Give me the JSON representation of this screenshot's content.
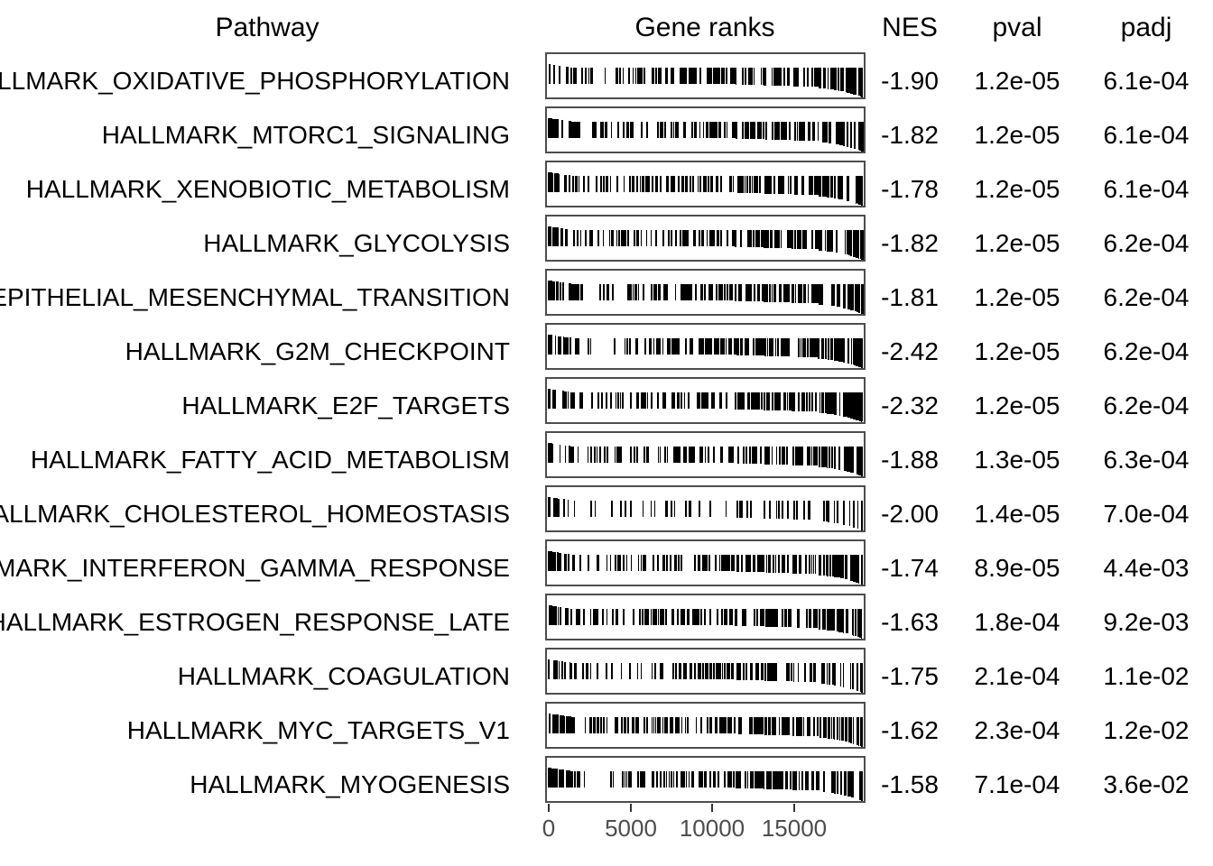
{
  "chart_data": {
    "type": "table",
    "columns": [
      "Pathway",
      "Gene ranks",
      "NES",
      "pval",
      "padj"
    ],
    "x_axis": {
      "tick_labels": [
        "0",
        "5000",
        "10000",
        "15000"
      ],
      "tick_values": [
        0,
        5000,
        10000,
        15000
      ],
      "x_range": [
        0,
        19200
      ]
    },
    "rows": [
      {
        "pathway": "HALLMARK_OXIDATIVE_PHOSPHORYLATION",
        "nes": "-1.90",
        "pval": "1.2e-05",
        "padj": "6.1e-04",
        "rank_profile": {
          "n": 170,
          "seed": 11,
          "left": 0.06,
          "mid": 0.24
        }
      },
      {
        "pathway": "HALLMARK_MTORC1_SIGNALING",
        "nes": "-1.82",
        "pval": "1.2e-05",
        "padj": "6.1e-04",
        "rank_profile": {
          "n": 185,
          "seed": 22,
          "left": 0.12,
          "mid": 0.25
        }
      },
      {
        "pathway": "HALLMARK_XENOBIOTIC_METABOLISM",
        "nes": "-1.78",
        "pval": "1.2e-05",
        "padj": "6.1e-04",
        "rank_profile": {
          "n": 185,
          "seed": 33,
          "left": 0.13,
          "mid": 0.25
        }
      },
      {
        "pathway": "HALLMARK_GLYCOLYSIS",
        "nes": "-1.82",
        "pval": "1.2e-05",
        "padj": "6.2e-04",
        "rank_profile": {
          "n": 170,
          "seed": 44,
          "left": 0.07,
          "mid": 0.26
        }
      },
      {
        "pathway": "HALLMARK_EPITHELIAL_MESENCHYMAL_TRANSITION",
        "nes": "-1.81",
        "pval": "1.2e-05",
        "padj": "6.2e-04",
        "rank_profile": {
          "n": 185,
          "seed": 55,
          "left": 0.1,
          "mid": 0.28
        }
      },
      {
        "pathway": "HALLMARK_G2M_CHECKPOINT",
        "nes": "-2.42",
        "pval": "1.2e-05",
        "padj": "6.2e-04",
        "rank_profile": {
          "n": 190,
          "seed": 66,
          "left": 0.08,
          "mid": 0.24
        }
      },
      {
        "pathway": "HALLMARK_E2F_TARGETS",
        "nes": "-2.32",
        "pval": "1.2e-05",
        "padj": "6.2e-04",
        "rank_profile": {
          "n": 190,
          "seed": 77,
          "left": 0.08,
          "mid": 0.22
        }
      },
      {
        "pathway": "HALLMARK_FATTY_ACID_METABOLISM",
        "nes": "-1.88",
        "pval": "1.3e-05",
        "padj": "6.3e-04",
        "rank_profile": {
          "n": 150,
          "seed": 88,
          "left": 0.09,
          "mid": 0.24
        }
      },
      {
        "pathway": "HALLMARK_CHOLESTEROL_HOMEOSTASIS",
        "nes": "-2.00",
        "pval": "1.4e-05",
        "padj": "7.0e-04",
        "rank_profile": {
          "n": 62,
          "seed": 99,
          "left": 0.05,
          "mid": 0.45
        }
      },
      {
        "pathway": "HALLMARK_INTERFERON_GAMMA_RESPONSE",
        "nes": "-1.74",
        "pval": "8.9e-05",
        "padj": "4.4e-03",
        "rank_profile": {
          "n": 175,
          "seed": 111,
          "left": 0.09,
          "mid": 0.3
        }
      },
      {
        "pathway": "HALLMARK_ESTROGEN_RESPONSE_LATE",
        "nes": "-1.63",
        "pval": "1.8e-04",
        "padj": "9.2e-03",
        "rank_profile": {
          "n": 185,
          "seed": 122,
          "left": 0.12,
          "mid": 0.3
        }
      },
      {
        "pathway": "HALLMARK_COAGULATION",
        "nes": "-1.75",
        "pval": "2.1e-04",
        "padj": "1.1e-02",
        "rank_profile": {
          "n": 130,
          "seed": 133,
          "left": 0.08,
          "mid": 0.3
        }
      },
      {
        "pathway": "HALLMARK_MYC_TARGETS_V1",
        "nes": "-1.62",
        "pval": "2.3e-04",
        "padj": "1.2e-02",
        "rank_profile": {
          "n": 180,
          "seed": 144,
          "left": 0.1,
          "mid": 0.28
        }
      },
      {
        "pathway": "HALLMARK_MYOGENESIS",
        "nes": "-1.58",
        "pval": "7.1e-04",
        "padj": "3.6e-02",
        "rank_profile": {
          "n": 190,
          "seed": 155,
          "left": 0.14,
          "mid": 0.3
        }
      }
    ]
  }
}
